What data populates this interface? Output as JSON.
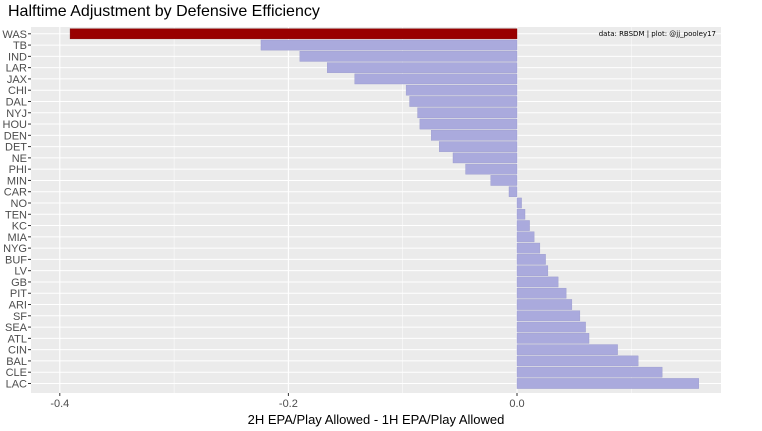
{
  "chart_data": {
    "type": "bar",
    "orientation": "horizontal",
    "title": "Halftime Adjustment by Defensive Efficiency",
    "caption": "data: RBSDM | plot: @jj_pooley17",
    "xlabel": "2H EPA/Play Allowed - 1H EPA/Play Allowed",
    "ylabel": "",
    "xlim": [
      -0.4,
      0.18
    ],
    "xticks": [
      -0.4,
      -0.2,
      0.0
    ],
    "xtick_labels": [
      "-0.4",
      "-0.2",
      "0.0"
    ],
    "grid": true,
    "highlight_color": "#990000",
    "bar_color": "#aaaadd",
    "panel_color": "#ebebeb",
    "categories": [
      "WAS",
      "TB",
      "IND",
      "LAR",
      "JAX",
      "CHI",
      "DAL",
      "NYJ",
      "HOU",
      "DEN",
      "DET",
      "NE",
      "PHI",
      "MIN",
      "CAR",
      "NO",
      "TEN",
      "KC",
      "MIA",
      "NYG",
      "BUF",
      "LV",
      "GB",
      "PIT",
      "ARI",
      "SF",
      "SEA",
      "ATL",
      "CIN",
      "BAL",
      "CLE",
      "LAC"
    ],
    "values": [
      -0.391,
      -0.224,
      -0.19,
      -0.166,
      -0.142,
      -0.097,
      -0.094,
      -0.087,
      -0.085,
      -0.075,
      -0.068,
      -0.056,
      -0.045,
      -0.023,
      -0.007,
      0.004,
      0.007,
      0.011,
      0.015,
      0.02,
      0.025,
      0.027,
      0.036,
      0.043,
      0.048,
      0.055,
      0.06,
      0.063,
      0.088,
      0.106,
      0.127,
      0.159
    ],
    "highlighted": [
      "WAS"
    ]
  }
}
